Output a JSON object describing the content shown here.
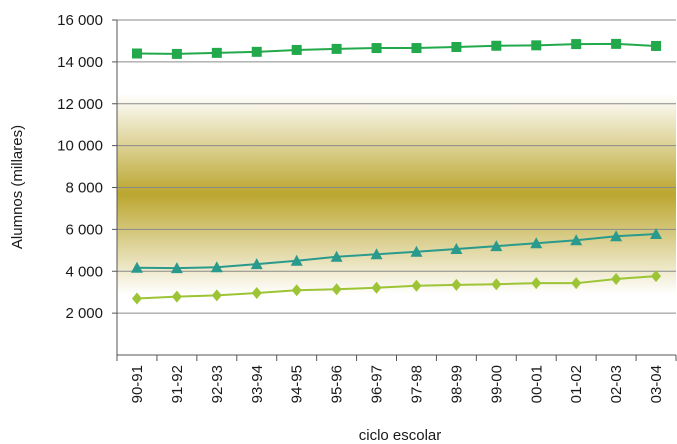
{
  "chart_data": {
    "type": "line",
    "xlabel": "ciclo escolar",
    "ylabel": "Alumnos (millares)",
    "ylim": [
      0,
      16000
    ],
    "yticks": [
      {
        "value": 2000,
        "label": "2 000"
      },
      {
        "value": 4000,
        "label": "4 000"
      },
      {
        "value": 6000,
        "label": "6 000"
      },
      {
        "value": 8000,
        "label": "8 000"
      },
      {
        "value": 10000,
        "label": "10 000"
      },
      {
        "value": 12000,
        "label": "12 000"
      },
      {
        "value": 14000,
        "label": "14 000"
      },
      {
        "value": 16000,
        "label": "16 000"
      }
    ],
    "grid": true,
    "legend": "none",
    "categories": [
      "90-91",
      "91-92",
      "92-93",
      "93-94",
      "94-95",
      "95-96",
      "96-97",
      "97-98",
      "98-99",
      "99-00",
      "00-01",
      "01-02",
      "02-03",
      "03-04"
    ],
    "series": [
      {
        "marker": "square",
        "color": "#22a94b",
        "values": [
          14400,
          14380,
          14430,
          14480,
          14570,
          14620,
          14660,
          14660,
          14710,
          14770,
          14790,
          14850,
          14860,
          14760
        ]
      },
      {
        "marker": "triangle",
        "color": "#2a9a8c",
        "values": [
          4170,
          4150,
          4190,
          4340,
          4500,
          4690,
          4810,
          4930,
          5060,
          5200,
          5340,
          5480,
          5670,
          5780
        ]
      },
      {
        "marker": "diamond",
        "color": "#9cc434",
        "values": [
          2700,
          2790,
          2850,
          2960,
          3090,
          3140,
          3210,
          3310,
          3350,
          3380,
          3430,
          3430,
          3630,
          3770
        ]
      }
    ]
  }
}
